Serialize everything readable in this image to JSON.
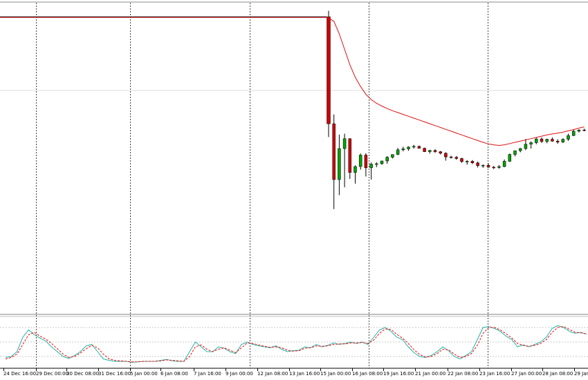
{
  "chart_data": [
    {
      "type": "candlestick",
      "panel": "price",
      "x_labels": [
        "24 Dec 16:00",
        "29 Dec 00:00",
        "30 Dec 08:00",
        "31 Dec 16:00",
        "5 Jan 00:00",
        "6 Jan 08:00",
        "7 Jan 16:00",
        "9 Jan 00:00",
        "12 Jan 08:00",
        "13 Jan 16:00",
        "15 Jan 00:00",
        "16 Jan 08:00",
        "19 Jan 16:00",
        "21 Jan 00:00",
        "22 Jan 08:00",
        "23 Jan 16:00",
        "27 Jan 00:00",
        "28 Jan 08:00",
        "29 Jan"
      ],
      "price_range": [
        0,
        1
      ],
      "flat_level": 0.955,
      "flat_until_bar": 118,
      "ohlc": [
        [
          0.955,
          0.974,
          0.567,
          0.61
        ],
        [
          0.61,
          0.64,
          0.335,
          0.43
        ],
        [
          0.43,
          0.575,
          0.38,
          0.53
        ],
        [
          0.53,
          0.578,
          0.405,
          0.562
        ],
        [
          0.562,
          0.563,
          0.432,
          0.453
        ],
        [
          0.453,
          0.476,
          0.417,
          0.472
        ],
        [
          0.472,
          0.514,
          0.462,
          0.509
        ],
        [
          0.509,
          0.515,
          0.44,
          0.468
        ],
        [
          0.468,
          0.485,
          0.43,
          0.48
        ],
        [
          0.48,
          0.486,
          0.47,
          0.481
        ],
        [
          0.481,
          0.491,
          0.478,
          0.49
        ],
        [
          0.49,
          0.506,
          0.481,
          0.502
        ],
        [
          0.502,
          0.511,
          0.498,
          0.511
        ],
        [
          0.511,
          0.532,
          0.509,
          0.526
        ],
        [
          0.526,
          0.536,
          0.521,
          0.529
        ],
        [
          0.529,
          0.537,
          0.523,
          0.535
        ],
        [
          0.535,
          0.542,
          0.53,
          0.537
        ],
        [
          0.537,
          0.54,
          0.53,
          0.531
        ],
        [
          0.531,
          0.533,
          0.519,
          0.52
        ],
        [
          0.52,
          0.526,
          0.514,
          0.524
        ],
        [
          0.524,
          0.528,
          0.516,
          0.52
        ],
        [
          0.52,
          0.522,
          0.511,
          0.515
        ],
        [
          0.515,
          0.518,
          0.491,
          0.503
        ],
        [
          0.503,
          0.507,
          0.498,
          0.502
        ],
        [
          0.502,
          0.506,
          0.494,
          0.498
        ],
        [
          0.498,
          0.5,
          0.484,
          0.488
        ],
        [
          0.488,
          0.493,
          0.478,
          0.489
        ],
        [
          0.489,
          0.493,
          0.48,
          0.484
        ],
        [
          0.484,
          0.488,
          0.469,
          0.475
        ],
        [
          0.475,
          0.479,
          0.468,
          0.476
        ],
        [
          0.476,
          0.482,
          0.468,
          0.47
        ],
        [
          0.47,
          0.474,
          0.464,
          0.469
        ],
        [
          0.469,
          0.477,
          0.465,
          0.472
        ],
        [
          0.472,
          0.495,
          0.47,
          0.489
        ],
        [
          0.489,
          0.514,
          0.487,
          0.511
        ],
        [
          0.511,
          0.524,
          0.505,
          0.523
        ],
        [
          0.523,
          0.532,
          0.518,
          0.53
        ],
        [
          0.53,
          0.561,
          0.525,
          0.544
        ],
        [
          0.544,
          0.553,
          0.53,
          0.549
        ],
        [
          0.549,
          0.565,
          0.544,
          0.561
        ],
        [
          0.561,
          0.566,
          0.548,
          0.553
        ],
        [
          0.553,
          0.562,
          0.547,
          0.56
        ],
        [
          0.56,
          0.566,
          0.552,
          0.554
        ],
        [
          0.554,
          0.56,
          0.545,
          0.551
        ],
        [
          0.551,
          0.563,
          0.548,
          0.56
        ],
        [
          0.56,
          0.578,
          0.555,
          0.572
        ],
        [
          0.572,
          0.591,
          0.57,
          0.586
        ],
        [
          0.586,
          0.592,
          0.582,
          0.59
        ],
        [
          0.59,
          0.594,
          0.586,
          0.588
        ]
      ],
      "moving_average": [
        0.955,
        0.94,
        0.9,
        0.85,
        0.8,
        0.76,
        0.73,
        0.705,
        0.688,
        0.676,
        0.667,
        0.659,
        0.652,
        0.646,
        0.64,
        0.634,
        0.628,
        0.622,
        0.616,
        0.61,
        0.604,
        0.598,
        0.592,
        0.586,
        0.58,
        0.574,
        0.568,
        0.562,
        0.556,
        0.55,
        0.545,
        0.542,
        0.54,
        0.542,
        0.546,
        0.55,
        0.554,
        0.558,
        0.562,
        0.566,
        0.57,
        0.574,
        0.577,
        0.58,
        0.583,
        0.587,
        0.591,
        0.596,
        0.6
      ],
      "colors": {
        "bull": "#00a000",
        "bear": "#cc0000",
        "ma": "#dd1111",
        "wick": "#000000"
      },
      "grid": true
    },
    {
      "type": "line",
      "panel": "stochastic",
      "y_range": [
        0,
        100
      ],
      "levels": [
        20,
        50,
        80
      ],
      "main": [
        18,
        20,
        30,
        60,
        75,
        65,
        58,
        52,
        40,
        30,
        20,
        16,
        22,
        30,
        42,
        45,
        30,
        15,
        12,
        10,
        10,
        10,
        8,
        9,
        10,
        10,
        10,
        12,
        14,
        11,
        10,
        10,
        30,
        50,
        40,
        30,
        30,
        40,
        37,
        30,
        26,
        45,
        50,
        45,
        42,
        40,
        38,
        42,
        35,
        30,
        32,
        33,
        40,
        38,
        45,
        40,
        43,
        48,
        45,
        47,
        50,
        47,
        50,
        45,
        60,
        75,
        80,
        72,
        60,
        55,
        40,
        28,
        20,
        18,
        22,
        30,
        40,
        32,
        20,
        15,
        22,
        30,
        55,
        80,
        82,
        78,
        72,
        62,
        55,
        40,
        44,
        40,
        45,
        50,
        60,
        78,
        84,
        80,
        72,
        68,
        70,
        66
      ],
      "signal": [
        15,
        18,
        25,
        45,
        65,
        70,
        62,
        56,
        47,
        36,
        25,
        18,
        20,
        27,
        36,
        43,
        38,
        25,
        15,
        12,
        11,
        10,
        9,
        9,
        10,
        10,
        10,
        11,
        13,
        12,
        11,
        10,
        20,
        40,
        44,
        35,
        30,
        35,
        38,
        33,
        28,
        38,
        48,
        47,
        44,
        41,
        39,
        40,
        38,
        33,
        31,
        32,
        37,
        38,
        42,
        41,
        42,
        45,
        46,
        46,
        48,
        48,
        49,
        47,
        54,
        68,
        77,
        76,
        66,
        58,
        47,
        34,
        24,
        19,
        20,
        26,
        35,
        34,
        25,
        18,
        20,
        26,
        43,
        68,
        80,
        80,
        75,
        67,
        58,
        47,
        43,
        41,
        43,
        47,
        55,
        70,
        80,
        82,
        76,
        70,
        69,
        67
      ],
      "colors": {
        "main": "#20b2aa",
        "signal": "#ff0000"
      }
    }
  ]
}
